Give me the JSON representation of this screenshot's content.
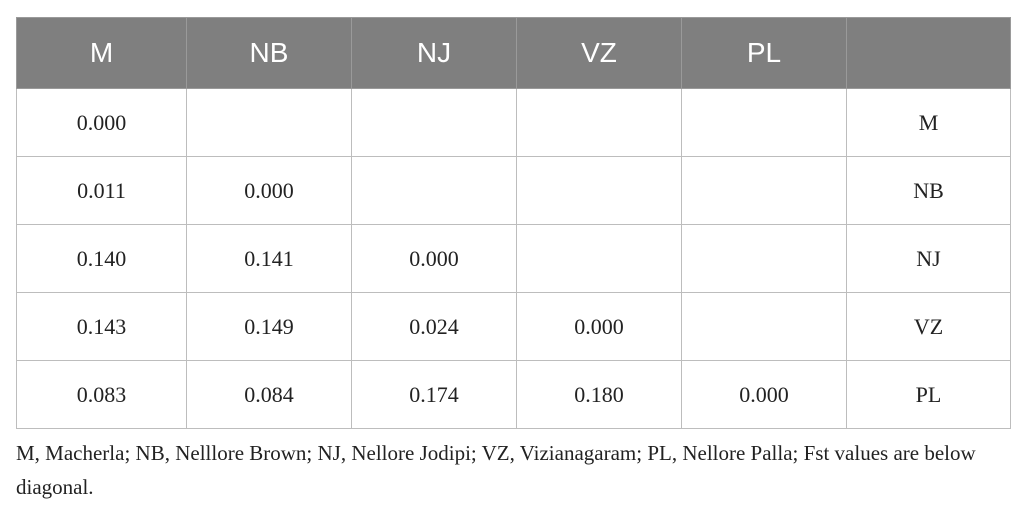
{
  "table": {
    "header": [
      "M",
      "NB",
      "NJ",
      "VZ",
      "PL",
      null
    ],
    "rows": [
      [
        "0.000",
        null,
        null,
        null,
        null,
        "M"
      ],
      [
        "0.011",
        "0.000",
        null,
        null,
        null,
        "NB"
      ],
      [
        "0.140",
        "0.141",
        "0.000",
        null,
        null,
        "NJ"
      ],
      [
        "0.143",
        "0.149",
        "0.024",
        "0.000",
        null,
        "VZ"
      ],
      [
        "0.083",
        "0.084",
        "0.174",
        "0.180",
        "0.000",
        "PL"
      ]
    ]
  },
  "footnote": "M, Macherla; NB, Nelllore Brown; NJ, Nellore Jodipi; VZ, Vizianagaram; PL, Nellore Palla; Fst values are below diagonal."
}
